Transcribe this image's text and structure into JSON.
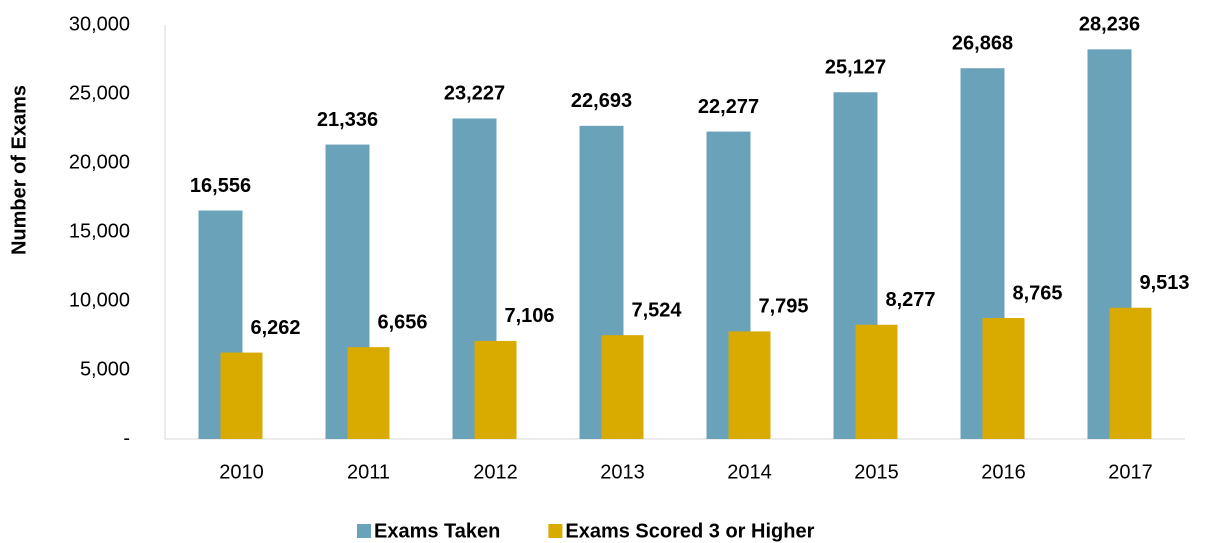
{
  "chart_data": {
    "type": "bar",
    "ylabel": "Number of Exams",
    "categories": [
      "2010",
      "2011",
      "2012",
      "2013",
      "2014",
      "2015",
      "2016",
      "2017"
    ],
    "series": [
      {
        "name": "Exams Taken",
        "color": "#6aa3b9",
        "values": [
          16556,
          21336,
          23227,
          22693,
          22277,
          25127,
          26868,
          28236
        ],
        "value_labels": [
          "16,556",
          "21,336",
          "23,227",
          "22,693",
          "22,277",
          "25,127",
          "26,868",
          "28,236"
        ]
      },
      {
        "name": "Exams Scored 3 or Higher",
        "color": "#d9aa00",
        "values": [
          6262,
          6656,
          7106,
          7524,
          7795,
          8277,
          8765,
          9513
        ],
        "value_labels": [
          "6,262",
          "6,656",
          "7,106",
          "7,524",
          "7,795",
          "8,277",
          "8,765",
          "9,513"
        ]
      }
    ],
    "ylim": [
      0,
      30000
    ],
    "yticks": [
      {
        "value": 0,
        "label": "-"
      },
      {
        "value": 5000,
        "label": "5,000"
      },
      {
        "value": 10000,
        "label": "10,000"
      },
      {
        "value": 15000,
        "label": "15,000"
      },
      {
        "value": 20000,
        "label": "20,000"
      },
      {
        "value": 25000,
        "label": "25,000"
      },
      {
        "value": 30000,
        "label": "30,000"
      }
    ],
    "legend": "bottom"
  }
}
